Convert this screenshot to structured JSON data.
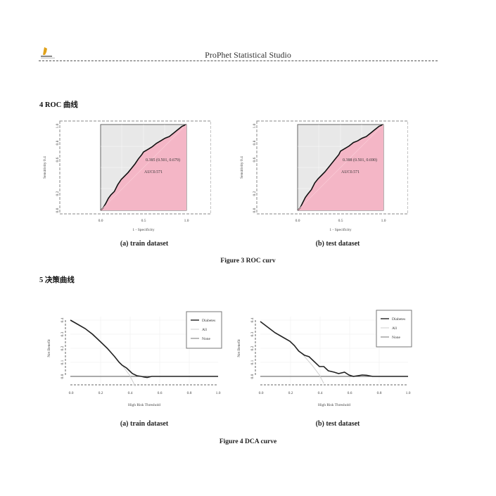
{
  "header": {
    "title": "ProPhet Statistical Studio",
    "logo_icon": "prophet-logo-icon"
  },
  "sections": {
    "roc": {
      "title": "4 ROC  曲线"
    },
    "dca": {
      "title": "5  决策曲线"
    }
  },
  "figures": {
    "roc": {
      "caption_a": "(a) train dataset",
      "caption_b": "(b) test dataset",
      "figure_caption": "Figure 3 ROC curv"
    },
    "dca": {
      "caption_a": "(a) train dataset",
      "caption_b": "(b) test dataset",
      "figure_caption": "Figure 4 DCA curve"
    }
  },
  "chart_data": [
    {
      "type": "line",
      "title": "(a) train dataset",
      "xlabel": "1 - Specificity",
      "ylabel": "Sensitivity 0.4",
      "xticks": [
        "0.0",
        "0.5",
        "1.0"
      ],
      "yticks": [
        "0.0",
        "0.2",
        "0.6",
        "0.8",
        "1.0"
      ],
      "xlim": [
        0,
        1
      ],
      "ylim": [
        0,
        1
      ],
      "annotation_point": "0.385 (0.501, 0.679)",
      "auc_label": "AUC0.571",
      "fill_color": "#f4b6c6",
      "background_color": "#e8e8e8",
      "x": [
        0,
        0.03,
        0.06,
        0.09,
        0.12,
        0.16,
        0.2,
        0.24,
        0.28,
        0.32,
        0.36,
        0.4,
        0.44,
        0.48,
        0.5,
        0.55,
        0.6,
        0.65,
        0.7,
        0.75,
        0.8,
        0.85,
        0.9,
        0.95,
        1.0
      ],
      "y": [
        0,
        0.03,
        0.08,
        0.14,
        0.18,
        0.22,
        0.3,
        0.36,
        0.4,
        0.44,
        0.49,
        0.54,
        0.6,
        0.65,
        0.68,
        0.71,
        0.74,
        0.78,
        0.81,
        0.84,
        0.86,
        0.9,
        0.94,
        0.98,
        1.0
      ]
    },
    {
      "type": "line",
      "title": "(b) test dataset",
      "xlabel": "1 - Specificity",
      "ylabel": "Sensitivity 0.4",
      "xticks": [
        "0.0",
        "0.5",
        "1.0"
      ],
      "yticks": [
        "0.0",
        "0.2",
        "0.6",
        "0.8",
        "1.0"
      ],
      "xlim": [
        0,
        1
      ],
      "ylim": [
        0,
        1
      ],
      "annotation_point": "0.388 (0.501, 0.690)",
      "auc_label": "AUC0.571",
      "fill_color": "#f4b6c6",
      "background_color": "#e8e8e8",
      "x": [
        0,
        0.03,
        0.06,
        0.09,
        0.12,
        0.16,
        0.2,
        0.24,
        0.28,
        0.32,
        0.36,
        0.4,
        0.44,
        0.48,
        0.5,
        0.55,
        0.6,
        0.65,
        0.7,
        0.75,
        0.8,
        0.85,
        0.9,
        0.95,
        1.0
      ],
      "y": [
        0,
        0.03,
        0.09,
        0.15,
        0.19,
        0.24,
        0.32,
        0.37,
        0.41,
        0.45,
        0.5,
        0.55,
        0.6,
        0.65,
        0.69,
        0.72,
        0.75,
        0.79,
        0.81,
        0.84,
        0.86,
        0.9,
        0.94,
        0.98,
        1.0
      ]
    },
    {
      "type": "line",
      "title": "(a) train dataset",
      "xlabel": "High Risk Threshold",
      "ylabel": "Net Benefit",
      "xticks": [
        "0.0",
        "0.2",
        "0.4",
        "0.6",
        "0.8",
        "1.0"
      ],
      "yticks": [
        "0.0",
        "0.1",
        "0.2",
        "0.3",
        "0.4"
      ],
      "xlim": [
        0,
        1
      ],
      "ylim": [
        -0.05,
        0.4
      ],
      "legend": [
        "Diabetes",
        "All",
        "None"
      ],
      "legend_position": "top-right",
      "series": [
        {
          "name": "Diabetes",
          "x": [
            0,
            0.05,
            0.1,
            0.15,
            0.2,
            0.25,
            0.3,
            0.33,
            0.35,
            0.38,
            0.4,
            0.42,
            0.45,
            0.48,
            0.5,
            0.52,
            0.55,
            0.6,
            0.7,
            0.8,
            0.9,
            1.0
          ],
          "y": [
            0.4,
            0.37,
            0.34,
            0.3,
            0.25,
            0.2,
            0.14,
            0.1,
            0.08,
            0.06,
            0.04,
            0.02,
            0.005,
            0.0,
            -0.005,
            -0.008,
            0.0,
            0.0,
            0.0,
            0.0,
            0.0,
            0.0
          ]
        },
        {
          "name": "All",
          "x": [
            0,
            0.1,
            0.2,
            0.3,
            0.35,
            0.4,
            0.44
          ],
          "y": [
            0.4,
            0.34,
            0.25,
            0.14,
            0.08,
            0.01,
            -0.07
          ]
        },
        {
          "name": "None",
          "x": [
            0,
            1
          ],
          "y": [
            0,
            0
          ]
        }
      ]
    },
    {
      "type": "line",
      "title": "(b) test dataset",
      "xlabel": "High Risk Threshold",
      "ylabel": "Net Benefit",
      "xticks": [
        "0.0",
        "0.2",
        "0.4",
        "0.6",
        "0.8",
        "1.0"
      ],
      "yticks": [
        "0.0",
        "0.1",
        "0.2",
        "0.3",
        "0.4"
      ],
      "xlim": [
        0,
        1
      ],
      "ylim": [
        -0.05,
        0.4
      ],
      "legend": [
        "Diabetes",
        "All",
        "None"
      ],
      "legend_position": "top-right",
      "series": [
        {
          "name": "Diabetes",
          "x": [
            0,
            0.05,
            0.1,
            0.15,
            0.2,
            0.23,
            0.26,
            0.3,
            0.33,
            0.36,
            0.4,
            0.43,
            0.46,
            0.5,
            0.53,
            0.57,
            0.6,
            0.63,
            0.66,
            0.69,
            0.72,
            0.76,
            0.8,
            0.9,
            1.0
          ],
          "y": [
            0.39,
            0.35,
            0.31,
            0.28,
            0.25,
            0.22,
            0.18,
            0.15,
            0.14,
            0.11,
            0.07,
            0.07,
            0.04,
            0.03,
            0.02,
            0.03,
            0.01,
            0.0,
            0.005,
            0.01,
            0.008,
            0.0,
            0.0,
            0.0,
            0.0
          ]
        },
        {
          "name": "All",
          "x": [
            0,
            0.1,
            0.2,
            0.3,
            0.35,
            0.4,
            0.43
          ],
          "y": [
            0.39,
            0.31,
            0.25,
            0.14,
            0.08,
            0.01,
            -0.05
          ]
        },
        {
          "name": "None",
          "x": [
            0,
            1
          ],
          "y": [
            0,
            0
          ]
        }
      ]
    }
  ]
}
